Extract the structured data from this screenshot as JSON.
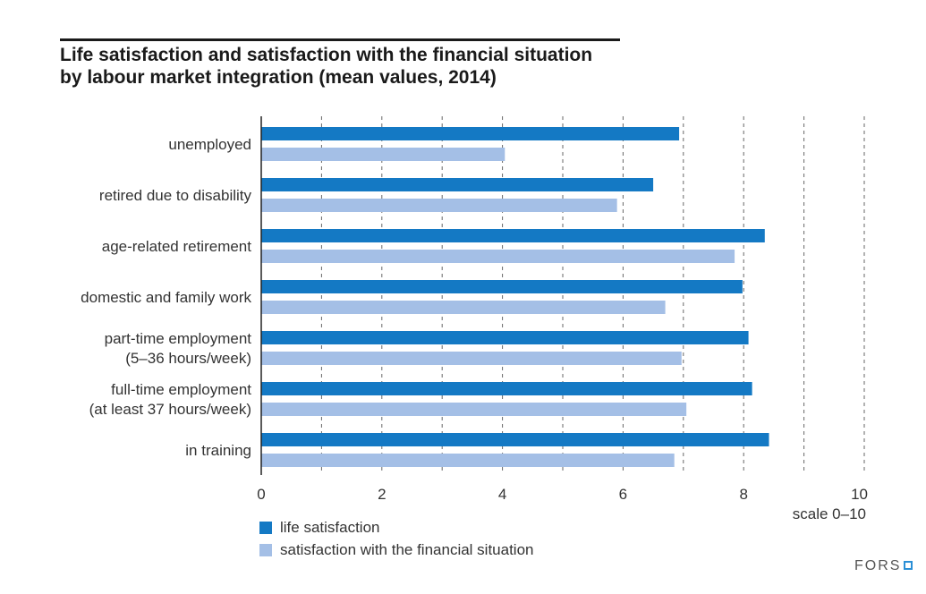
{
  "title_lines": [
    "Life satisfaction and satisfaction with the financial situation",
    "by labour market integration (mean values, 2014)"
  ],
  "colors": {
    "life": "#1479c4",
    "financial": "#a4bfe6",
    "grid": "#666666",
    "text": "#333333"
  },
  "chart_data": {
    "type": "bar",
    "orientation": "horizontal",
    "title": "Life satisfaction and satisfaction with the financial situation by labour market integration (mean values, 2014)",
    "categories": [
      [
        "unemployed"
      ],
      [
        "retired due to disability"
      ],
      [
        "age-related retirement"
      ],
      [
        "domestic and family work"
      ],
      [
        "part-time employment",
        "(5–36 hours/week)"
      ],
      [
        "full-time employment",
        "(at least 37 hours/week)"
      ],
      [
        "in training"
      ]
    ],
    "series": [
      {
        "name": "life satisfaction",
        "values": [
          6.93,
          6.5,
          8.35,
          7.98,
          8.08,
          8.14,
          8.42
        ]
      },
      {
        "name": "satisfaction with the financial situation",
        "values": [
          4.04,
          5.9,
          7.85,
          6.7,
          6.97,
          7.05,
          6.85
        ]
      }
    ],
    "xlim": [
      0,
      10
    ],
    "x_ticks": [
      "0",
      "2",
      "4",
      "6",
      "8",
      "10"
    ],
    "x_tick_values": [
      0,
      2,
      4,
      6,
      8,
      10
    ],
    "gridlines": [
      1,
      2,
      3,
      4,
      5,
      6,
      7,
      8,
      9,
      10
    ],
    "xlabel": "scale 0–10",
    "legend_position": "bottom-left"
  },
  "legend": {
    "life": "life satisfaction",
    "financial": "satisfaction with the financial situation"
  },
  "brand": "FORS"
}
